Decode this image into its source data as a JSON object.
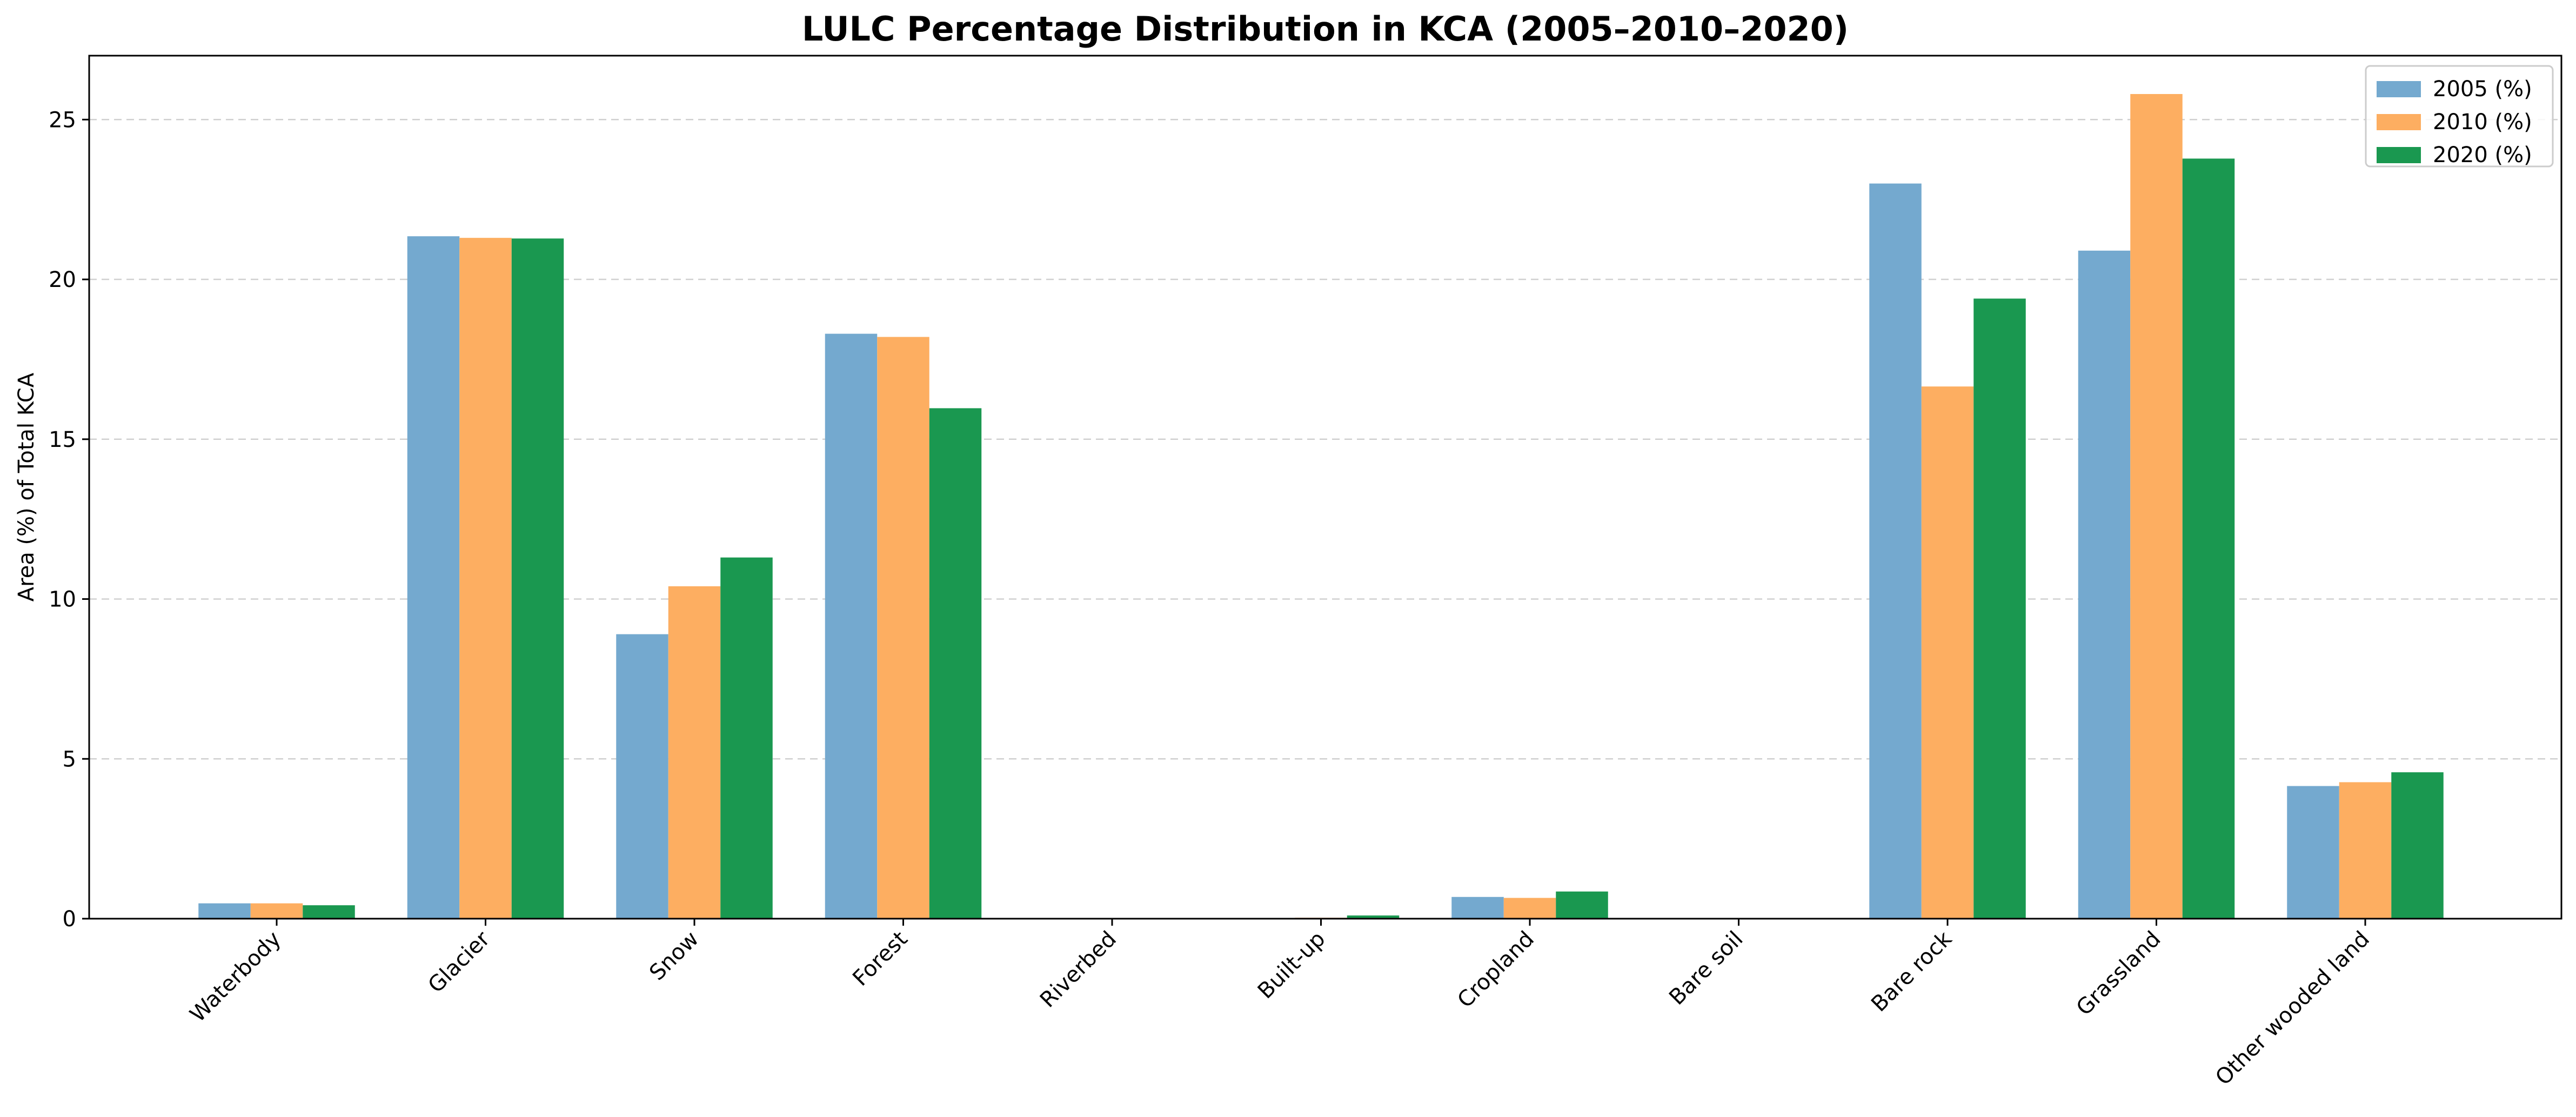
{
  "chart_data": {
    "type": "bar",
    "title": "LULC Percentage Distribution in KCA (2005–2010–2020)",
    "xlabel": "",
    "ylabel": "Area (%) of Total KCA",
    "ylim": [
      0,
      27
    ],
    "yticks": [
      0,
      5,
      10,
      15,
      20,
      25
    ],
    "grid": "y, dashed",
    "legend_position": "top-right",
    "categories": [
      "Waterbody",
      "Glacier",
      "Snow",
      "Forest",
      "Riverbed",
      "Built-up",
      "Cropland",
      "Bare soil",
      "Bare rock",
      "Grassland",
      "Other wooded land"
    ],
    "series": [
      {
        "name": "2005 (%)",
        "color": "#74a9cf",
        "values": [
          0.48,
          21.35,
          8.9,
          18.3,
          0.01,
          0.02,
          0.68,
          0.0,
          23.0,
          20.9,
          4.15
        ]
      },
      {
        "name": "2010 (%)",
        "color": "#fdae61",
        "values": [
          0.48,
          21.3,
          10.4,
          18.2,
          0.01,
          0.03,
          0.65,
          0.0,
          16.65,
          25.8,
          4.27
        ]
      },
      {
        "name": "2020 (%)",
        "color": "#1a9850",
        "values": [
          0.42,
          21.28,
          11.3,
          15.97,
          0.01,
          0.1,
          0.85,
          0.0,
          19.4,
          23.78,
          4.58
        ]
      }
    ]
  }
}
